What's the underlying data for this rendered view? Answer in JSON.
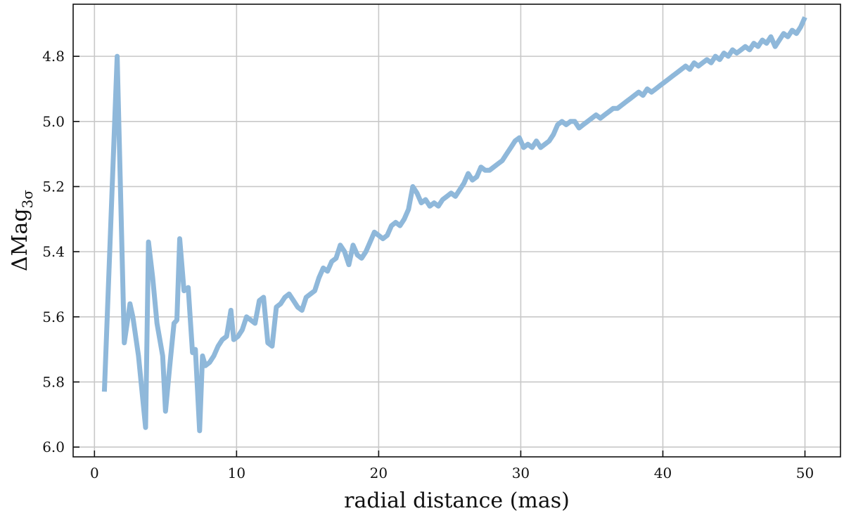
{
  "chart_data": {
    "type": "line",
    "title": "",
    "xlabel": "radial distance (mas)",
    "ylabel_main": "ΔMag",
    "ylabel_sub": "3σ",
    "xlim": [
      -1.5,
      52.5
    ],
    "ylim": [
      4.64,
      6.03
    ],
    "y_inverted": true,
    "grid": true,
    "xticks": [
      0,
      10,
      20,
      30,
      40,
      50
    ],
    "xtick_labels": [
      "0",
      "10",
      "20",
      "30",
      "40",
      "50"
    ],
    "yticks": [
      4.8,
      5.0,
      5.2,
      5.4,
      5.6,
      5.8,
      6.0
    ],
    "ytick_labels": [
      "4.8",
      "5.0",
      "5.2",
      "5.4",
      "5.6",
      "5.8",
      "6.0"
    ],
    "colors": {
      "line": "#8fb8da",
      "grid": "#c8c8c8",
      "axes": "#111111"
    },
    "series": [
      {
        "x": [
          0.7,
          1.6,
          2.1,
          2.5,
          2.7,
          3.1,
          3.6,
          3.8,
          4.1,
          4.4,
          4.8,
          5.0,
          5.3,
          5.6,
          5.8,
          6.0,
          6.3,
          6.6,
          6.9,
          7.1,
          7.4,
          7.6,
          7.8,
          8.1,
          8.4,
          8.7,
          9.0,
          9.3,
          9.6,
          9.8,
          10.1,
          10.4,
          10.7,
          11.0,
          11.3,
          11.6,
          11.9,
          12.2,
          12.5,
          12.8,
          13.1,
          13.4,
          13.7,
          14.0,
          14.3,
          14.6,
          14.9,
          15.2,
          15.5,
          15.8,
          16.1,
          16.4,
          16.7,
          17.0,
          17.3,
          17.6,
          17.9,
          18.2,
          18.5,
          18.8,
          19.1,
          19.4,
          19.7,
          20.0,
          20.3,
          20.6,
          20.9,
          21.2,
          21.5,
          21.8,
          22.1,
          22.4,
          22.7,
          23.0,
          23.3,
          23.6,
          23.9,
          24.2,
          24.5,
          24.8,
          25.1,
          25.4,
          25.7,
          26.0,
          26.3,
          26.6,
          26.9,
          27.2,
          27.5,
          27.8,
          28.1,
          28.4,
          28.7,
          29.0,
          29.3,
          29.6,
          29.9,
          30.2,
          30.5,
          30.8,
          31.1,
          31.4,
          31.7,
          32.0,
          32.3,
          32.6,
          32.9,
          33.2,
          33.5,
          33.8,
          34.1,
          34.4,
          34.7,
          35.0,
          35.3,
          35.6,
          35.9,
          36.2,
          36.5,
          36.8,
          37.1,
          37.4,
          37.7,
          38.0,
          38.3,
          38.6,
          38.9,
          39.2,
          39.5,
          39.8,
          40.1,
          40.4,
          40.7,
          41.0,
          41.3,
          41.6,
          41.9,
          42.2,
          42.5,
          42.8,
          43.1,
          43.4,
          43.7,
          44.0,
          44.3,
          44.6,
          44.9,
          45.2,
          45.5,
          45.8,
          46.1,
          46.4,
          46.7,
          47.0,
          47.3,
          47.6,
          47.9,
          48.2,
          48.5,
          48.8,
          49.1,
          49.4,
          49.7,
          50.0
        ],
        "y": [
          5.83,
          4.8,
          5.68,
          5.56,
          5.6,
          5.72,
          5.94,
          5.37,
          5.48,
          5.62,
          5.72,
          5.89,
          5.75,
          5.62,
          5.61,
          5.36,
          5.52,
          5.51,
          5.71,
          5.7,
          5.95,
          5.72,
          5.75,
          5.74,
          5.72,
          5.69,
          5.67,
          5.66,
          5.58,
          5.67,
          5.66,
          5.64,
          5.6,
          5.61,
          5.62,
          5.55,
          5.54,
          5.68,
          5.69,
          5.57,
          5.56,
          5.54,
          5.53,
          5.55,
          5.57,
          5.58,
          5.54,
          5.53,
          5.52,
          5.48,
          5.45,
          5.46,
          5.43,
          5.42,
          5.38,
          5.4,
          5.44,
          5.38,
          5.41,
          5.42,
          5.4,
          5.37,
          5.34,
          5.35,
          5.36,
          5.35,
          5.32,
          5.31,
          5.32,
          5.3,
          5.27,
          5.2,
          5.22,
          5.25,
          5.24,
          5.26,
          5.25,
          5.26,
          5.24,
          5.23,
          5.22,
          5.23,
          5.21,
          5.19,
          5.16,
          5.18,
          5.17,
          5.14,
          5.15,
          5.15,
          5.14,
          5.13,
          5.12,
          5.1,
          5.08,
          5.06,
          5.05,
          5.08,
          5.07,
          5.08,
          5.06,
          5.08,
          5.07,
          5.06,
          5.04,
          5.01,
          5.0,
          5.01,
          5.0,
          5.0,
          5.02,
          5.01,
          5.0,
          4.99,
          4.98,
          4.99,
          4.98,
          4.97,
          4.96,
          4.96,
          4.95,
          4.94,
          4.93,
          4.92,
          4.91,
          4.92,
          4.9,
          4.91,
          4.9,
          4.89,
          4.88,
          4.87,
          4.86,
          4.85,
          4.84,
          4.83,
          4.84,
          4.82,
          4.83,
          4.82,
          4.81,
          4.82,
          4.8,
          4.81,
          4.79,
          4.8,
          4.78,
          4.79,
          4.78,
          4.77,
          4.78,
          4.76,
          4.77,
          4.75,
          4.76,
          4.74,
          4.77,
          4.75,
          4.73,
          4.74,
          4.72,
          4.73,
          4.71,
          4.68
        ]
      }
    ]
  }
}
